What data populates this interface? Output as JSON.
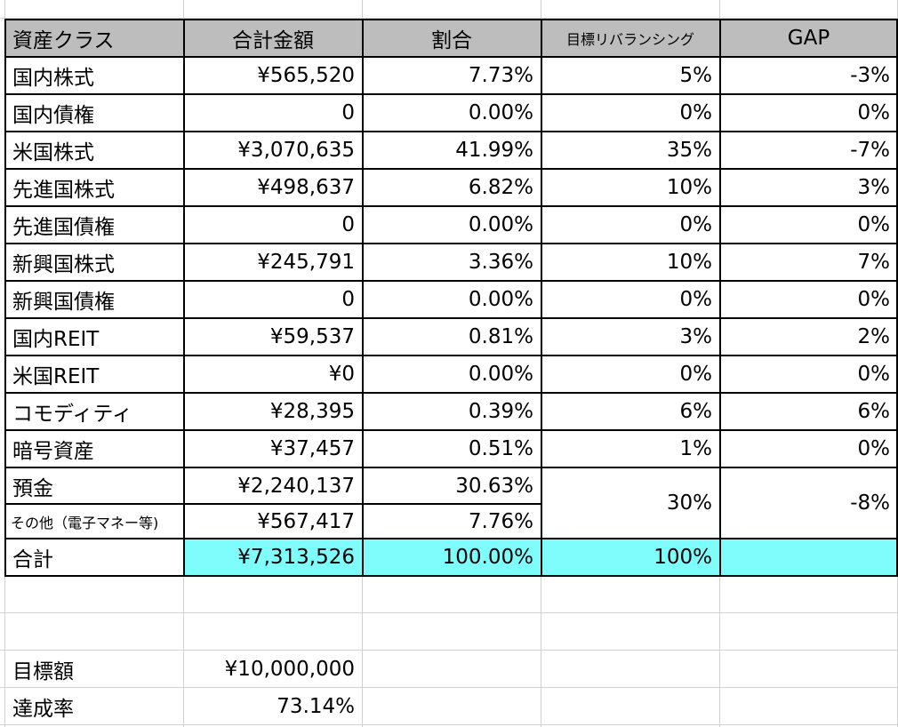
{
  "header": {
    "asset_class": "資産クラス",
    "total_amount": "合計金額",
    "ratio": "割合",
    "target_rebalancing": "目標リバランシング",
    "gap": "GAP"
  },
  "rows": [
    {
      "name": "国内株式",
      "amount": "¥565,520",
      "ratio": "7.73%",
      "target": "5%",
      "gap": "-3%"
    },
    {
      "name": "国内債権",
      "amount": "0",
      "ratio": "0.00%",
      "target": "0%",
      "gap": "0%"
    },
    {
      "name": "米国株式",
      "amount": "¥3,070,635",
      "ratio": "41.99%",
      "target": "35%",
      "gap": "-7%"
    },
    {
      "name": "先進国株式",
      "amount": "¥498,637",
      "ratio": "6.82%",
      "target": "10%",
      "gap": "3%"
    },
    {
      "name": "先進国債権",
      "amount": "0",
      "ratio": "0.00%",
      "target": "0%",
      "gap": "0%"
    },
    {
      "name": "新興国株式",
      "amount": "¥245,791",
      "ratio": "3.36%",
      "target": "10%",
      "gap": "7%"
    },
    {
      "name": "新興国債権",
      "amount": "0",
      "ratio": "0.00%",
      "target": "0%",
      "gap": "0%"
    },
    {
      "name": "国内REIT",
      "amount": "¥59,537",
      "ratio": "0.81%",
      "target": "3%",
      "gap": "2%"
    },
    {
      "name": "米国REIT",
      "amount": "¥0",
      "ratio": "0.00%",
      "target": "0%",
      "gap": "0%"
    },
    {
      "name": "コモディティ",
      "amount": "¥28,395",
      "ratio": "0.39%",
      "target": "6%",
      "gap": "6%"
    },
    {
      "name": "暗号資産",
      "amount": "¥37,457",
      "ratio": "0.51%",
      "target": "1%",
      "gap": "0%"
    }
  ],
  "deposit": {
    "name": "預金",
    "amount": "¥2,240,137",
    "ratio": "30.63%"
  },
  "other": {
    "name": "その他（電子マネー等)",
    "amount": "¥567,417",
    "ratio": "7.76%"
  },
  "merged": {
    "target": "30%",
    "gap": "-8%"
  },
  "total": {
    "name": "合計",
    "amount": "¥7,313,526",
    "ratio": "100.00%",
    "target": "100%",
    "gap": ""
  },
  "goal": {
    "label": "目標額",
    "value": "¥10,000,000"
  },
  "achievement": {
    "label": "達成率",
    "value": "73.14%"
  },
  "colors": {
    "header_bg": "#bdbdbd",
    "total_highlight": "#7ffcfc",
    "gridline": "#d0d0d0"
  }
}
